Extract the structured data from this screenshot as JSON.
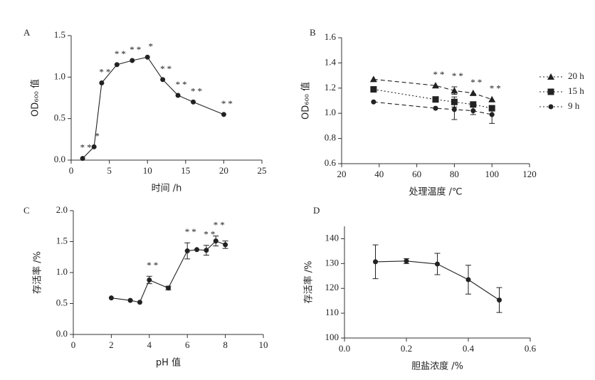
{
  "chart_data": [
    {
      "type": "line",
      "title": "A",
      "xlabel": "时间 /h",
      "ylabel": "OD₆₀₀ 值",
      "x": [
        1.5,
        3,
        4,
        6,
        8,
        10,
        12,
        14,
        16,
        20
      ],
      "series": [
        {
          "values": [
            0.02,
            0.16,
            0.93,
            1.15,
            1.2,
            1.24,
            0.97,
            0.78,
            0.7,
            0.55
          ],
          "color": "#222",
          "marker": "circle",
          "dash": "none"
        }
      ],
      "annotations": [
        "**",
        "*",
        "**",
        "**",
        "**",
        "*",
        "**",
        "**",
        "**",
        "**"
      ],
      "xlim": [
        0,
        25
      ],
      "xticks": [
        0,
        5,
        10,
        15,
        20,
        25
      ],
      "ylim": [
        0,
        1.5
      ],
      "yticks": [
        {
          "value": 0,
          "label": "0.0"
        },
        0.5,
        {
          "value": 1,
          "label": "1.0"
        },
        1.5
      ]
    },
    {
      "type": "line",
      "title": "B",
      "xlabel": "处理温度 /℃",
      "ylabel": "OD₆₀₀ 值",
      "x": [
        37,
        70,
        80,
        90,
        100
      ],
      "series": [
        {
          "name": "20 h",
          "values": [
            1.27,
            1.22,
            1.18,
            1.16,
            1.11
          ],
          "errors": [
            null,
            null,
            0.03,
            null,
            null
          ],
          "color": "#222",
          "marker": "triangle",
          "dash": "6,4"
        },
        {
          "name": "15 h",
          "values": [
            1.19,
            1.11,
            1.09,
            1.07,
            1.04
          ],
          "errors": [
            null,
            null,
            0.04,
            null,
            null
          ],
          "color": "#222",
          "marker": "square",
          "dash": "2,3"
        },
        {
          "name": "9 h",
          "values": [
            1.09,
            1.04,
            1.03,
            1.02,
            0.99
          ],
          "errors": [
            null,
            null,
            0.08,
            0.03,
            0.07
          ],
          "color": "#222",
          "marker": "circle",
          "dash": "6,4"
        }
      ],
      "annotations": [
        null,
        "**",
        "**",
        "**",
        "**"
      ],
      "legend": "right",
      "xlim": [
        20,
        120
      ],
      "xticks": [
        20,
        40,
        60,
        80,
        100,
        120
      ],
      "ylim": [
        0.6,
        1.6
      ],
      "yticks": [
        0.6,
        0.8,
        {
          "value": 1,
          "label": "1.0"
        },
        1.2,
        1.4,
        1.6
      ]
    },
    {
      "type": "line",
      "title": "C",
      "xlabel": "pH 值",
      "ylabel": "存活率 /%",
      "x": [
        2,
        3,
        3.5,
        4,
        5,
        6,
        6.5,
        7,
        7.5,
        8
      ],
      "series": [
        {
          "values": [
            0.59,
            0.55,
            0.52,
            0.88,
            0.75,
            1.35,
            1.37,
            1.36,
            1.51,
            1.45
          ],
          "errors": [
            null,
            null,
            null,
            0.06,
            0.03,
            0.13,
            null,
            0.08,
            0.08,
            0.06
          ],
          "color": "#222",
          "marker": "circle",
          "dash": "none"
        }
      ],
      "annotations": [
        null,
        null,
        null,
        "**",
        null,
        "**",
        null,
        "**",
        "**",
        null
      ],
      "xlim": [
        0,
        10
      ],
      "xticks": [
        0,
        2,
        4,
        6,
        8,
        10
      ],
      "ylim": [
        0,
        2
      ],
      "yticks": [
        {
          "value": 0,
          "label": "0.0"
        },
        0.5,
        {
          "value": 1,
          "label": "1.0"
        },
        1.5,
        {
          "value": 2,
          "label": "2.0"
        }
      ]
    },
    {
      "type": "line",
      "title": "D",
      "xlabel": "胆盐浓度 /%",
      "ylabel": "存活率 /%",
      "x": [
        0.1,
        0.2,
        0.3,
        0.4,
        0.5
      ],
      "series": [
        {
          "values": [
            130.7,
            131.0,
            129.8,
            123.5,
            115.3
          ],
          "errors": [
            6.8,
            1.0,
            4.3,
            5.8,
            5.0
          ],
          "color": "#222",
          "marker": "circle",
          "dash": "none"
        }
      ],
      "xlim": [
        0,
        0.6
      ],
      "xticks": [
        {
          "value": 0,
          "label": "0.0"
        },
        0.2,
        0.4,
        0.6
      ],
      "ylim": [
        100,
        145
      ],
      "yticks": [
        100,
        110,
        120,
        130,
        140
      ]
    }
  ]
}
